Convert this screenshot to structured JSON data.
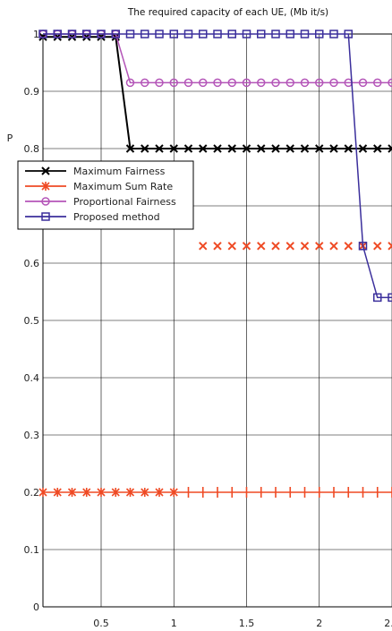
{
  "chart_data": {
    "type": "line",
    "title": "The required capacity of each UE, (Mb it/s)",
    "xlabel": "",
    "ylabel": "P",
    "xlim": [
      0.1,
      2.5
    ],
    "ylim": [
      0,
      1
    ],
    "grid": true,
    "legend_position": "upper-left",
    "x_ticks": [
      0.5,
      1,
      1.5,
      2,
      2.5
    ],
    "x_tick_labels": [
      "0.5",
      "1",
      "1.5",
      "2",
      "2.5"
    ],
    "y_ticks": [
      0,
      0.1,
      0.2,
      0.3,
      0.4,
      0.5,
      0.6,
      0.7,
      0.8,
      0.9,
      1
    ],
    "y_tick_labels": [
      "0",
      "0.1",
      "0.2",
      "0.3",
      "0.4",
      "0.5",
      "0.6",
      "0.7",
      "0.8",
      "0.9",
      "1"
    ],
    "series": [
      {
        "name": "Maximum Fairness",
        "color": "#000000",
        "marker": "x",
        "x": [
          0.1,
          0.2,
          0.3,
          0.4,
          0.5,
          0.6,
          0.7,
          0.8,
          0.9,
          1.0,
          1.1,
          1.2,
          1.3,
          1.4,
          1.5,
          1.6,
          1.7,
          1.8,
          1.9,
          2.0,
          2.1,
          2.2,
          2.3,
          2.4,
          2.5
        ],
        "y": [
          0.995,
          0.995,
          0.995,
          0.995,
          0.995,
          0.995,
          0.8,
          0.8,
          0.8,
          0.8,
          0.8,
          0.8,
          0.8,
          0.8,
          0.8,
          0.8,
          0.8,
          0.8,
          0.8,
          0.8,
          0.8,
          0.8,
          0.8,
          0.8,
          0.8
        ]
      },
      {
        "name": "Maximum Sum Rate",
        "color": "#ef4a24",
        "marker": "*",
        "x": [
          0.1,
          0.2,
          0.3,
          0.4,
          0.5,
          0.6,
          0.7,
          0.8,
          0.9,
          1.0,
          1.1,
          1.2,
          1.3,
          1.4,
          1.5,
          1.6,
          1.7,
          1.8,
          1.9,
          2.0,
          2.1,
          2.2,
          2.3,
          2.4,
          2.5
        ],
        "y": [
          0.2,
          0.2,
          0.2,
          0.2,
          0.2,
          0.2,
          0.2,
          0.2,
          0.2,
          0.2,
          0.2,
          0.2,
          0.2,
          0.2,
          0.2,
          0.2,
          0.2,
          0.2,
          0.2,
          0.2,
          0.2,
          0.2,
          0.2,
          0.2,
          0.2
        ],
        "extra_markers": {
          "x": [
            1.2,
            1.3,
            1.4,
            1.5,
            1.6,
            1.7,
            1.8,
            1.9,
            2.0,
            2.1,
            2.2,
            2.3,
            2.4,
            2.5
          ],
          "y": 0.63
        }
      },
      {
        "name": "Proportional Fairness",
        "color": "#b455b8",
        "marker": "o",
        "x": [
          0.1,
          0.2,
          0.3,
          0.4,
          0.5,
          0.6,
          0.7,
          0.8,
          0.9,
          1.0,
          1.1,
          1.2,
          1.3,
          1.4,
          1.5,
          1.6,
          1.7,
          1.8,
          1.9,
          2.0,
          2.1,
          2.2,
          2.3,
          2.4,
          2.5
        ],
        "y": [
          1.0,
          1.0,
          1.0,
          1.0,
          1.0,
          1.0,
          0.915,
          0.915,
          0.915,
          0.915,
          0.915,
          0.915,
          0.915,
          0.915,
          0.915,
          0.915,
          0.915,
          0.915,
          0.915,
          0.915,
          0.915,
          0.915,
          0.915,
          0.915,
          0.915
        ]
      },
      {
        "name": "Proposed method",
        "color": "#3b2f9c",
        "marker": "s",
        "x": [
          0.1,
          0.2,
          0.3,
          0.4,
          0.5,
          0.6,
          0.7,
          0.8,
          0.9,
          1.0,
          1.1,
          1.2,
          1.3,
          1.4,
          1.5,
          1.6,
          1.7,
          1.8,
          1.9,
          2.0,
          2.1,
          2.2,
          2.3,
          2.4,
          2.5
        ],
        "y": [
          1.0,
          1.0,
          1.0,
          1.0,
          1.0,
          1.0,
          1.0,
          1.0,
          1.0,
          1.0,
          1.0,
          1.0,
          1.0,
          1.0,
          1.0,
          1.0,
          1.0,
          1.0,
          1.0,
          1.0,
          1.0,
          1.0,
          0.63,
          0.54,
          0.54
        ]
      }
    ]
  }
}
